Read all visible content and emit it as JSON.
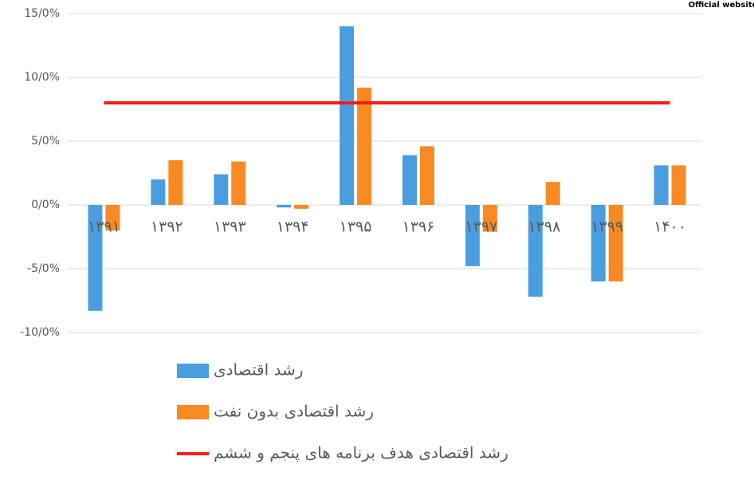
{
  "watermark": "Official website",
  "chart_data": {
    "type": "bar",
    "categories": [
      "۱۳۹۱",
      "۱۳۹۲",
      "۱۳۹۳",
      "۱۳۹۴",
      "۱۳۹۵",
      "۱۳۹۶",
      "۱۳۹۷",
      "۱۳۹۸",
      "۱۳۹۹",
      "۱۴۰۰"
    ],
    "series": [
      {
        "name": "رشد اقتصادی",
        "color": "#4a9ee0",
        "values": [
          -8.3,
          2.0,
          2.4,
          -0.2,
          14.0,
          3.9,
          -4.8,
          -7.2,
          -6.0,
          3.1
        ]
      },
      {
        "name": "رشد اقتصادی بدون نفت",
        "color": "#f98a23",
        "values": [
          -2.0,
          3.5,
          3.4,
          -0.3,
          9.2,
          4.6,
          -2.1,
          1.8,
          -6.0,
          3.1
        ]
      },
      {
        "name": "رشد اقتصادی هدف برنامه های پنجم و ششم",
        "color": "#ff1a1a",
        "type": "line",
        "values": [
          8,
          8,
          8,
          8,
          8,
          8,
          8,
          8,
          8,
          8
        ]
      }
    ],
    "ylim": [
      -10,
      15
    ],
    "yticks": [
      {
        "value": -10,
        "label": "-10/0%"
      },
      {
        "value": -5,
        "label": "-5/0%"
      },
      {
        "value": 0,
        "label": "0/0%"
      },
      {
        "value": 5,
        "label": "5/0%"
      },
      {
        "value": 10,
        "label": "10/0%"
      },
      {
        "value": 15,
        "label": "15/0%"
      }
    ],
    "grid": true
  }
}
